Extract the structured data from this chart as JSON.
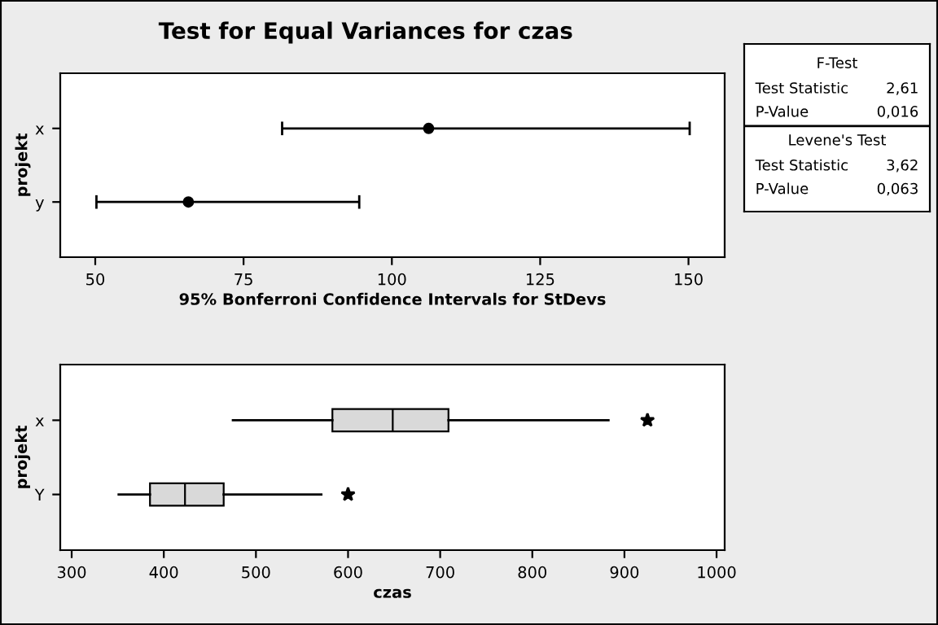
{
  "chart_data": [
    {
      "type": "scatter",
      "title": "Test for Equal Variances for czas",
      "orientation": "horizontal",
      "categories": [
        "x",
        "y"
      ],
      "xlabel": "95% Bonferroni Confidence Intervals for StDevs",
      "ylabel": "projekt",
      "values": [
        106.2,
        65.7
      ],
      "errors": [
        [
          81.5,
          150.2
        ],
        [
          50.2,
          94.5
        ]
      ],
      "color": "#000000",
      "marker": "circle",
      "xlim": [
        44.1,
        156.1
      ],
      "xticks": [
        50,
        75,
        100,
        125,
        150
      ],
      "grid": false
    },
    {
      "type": "box",
      "orientation": "horizontal",
      "categories": [
        "x",
        "Y"
      ],
      "xlabel": "czas",
      "ylabel": "projekt",
      "color": "#d9d9d9",
      "xlim": [
        287.6,
        1008.8
      ],
      "xticks": [
        300,
        400,
        500,
        600,
        700,
        800,
        900,
        1000
      ],
      "grid": false,
      "boxes": [
        {
          "low": 475,
          "q1": 583,
          "median": 648.5,
          "q3": 709,
          "high": 882.7,
          "outliers": [
            925
          ]
        },
        {
          "low": 351,
          "q1": 385,
          "median": 423,
          "q3": 465,
          "high": 571,
          "outliers": [
            600
          ]
        }
      ]
    },
    {
      "type": "other",
      "annotations": [
        "F-Test",
        "Test Statistic",
        "2,61",
        "P-Value",
        "0,016",
        "Levene's Test",
        "Test Statistic",
        "3,62",
        "P-Value",
        "0,063"
      ]
    }
  ]
}
